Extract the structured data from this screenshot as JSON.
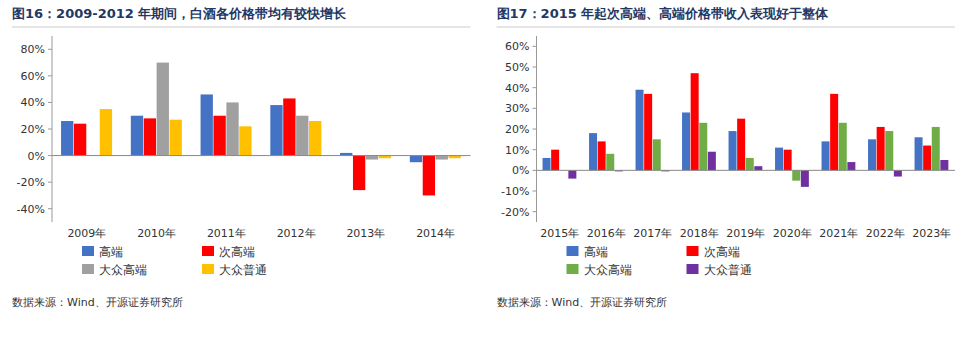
{
  "chart_data": [
    {
      "type": "bar",
      "title": "图16：2009-2012 年期间，白酒各价格带均有较快增长",
      "categories": [
        "2009年",
        "2010年",
        "2011年",
        "2012年",
        "2013年",
        "2014年"
      ],
      "series": [
        {
          "name": "高端",
          "color": "#4472C4",
          "values": [
            0.26,
            0.3,
            0.46,
            0.38,
            0.02,
            -0.05
          ]
        },
        {
          "name": "次高端",
          "color": "#FF0000",
          "values": [
            0.24,
            0.28,
            0.3,
            0.43,
            -0.26,
            -0.3
          ]
        },
        {
          "name": "大众高端",
          "color": "#A0A0A0",
          "values": [
            null,
            0.7,
            0.4,
            0.3,
            -0.03,
            -0.03
          ]
        },
        {
          "name": "大众普通",
          "color": "#FFC000",
          "values": [
            0.35,
            0.27,
            0.22,
            0.26,
            -0.02,
            -0.02
          ]
        }
      ],
      "ylim": [
        -0.5,
        0.9
      ],
      "yticks": [
        {
          "value": -0.4,
          "label": "-40%"
        },
        {
          "value": -0.2,
          "label": "-20%"
        },
        {
          "value": 0.0,
          "label": "0%"
        },
        {
          "value": 0.2,
          "label": "20%"
        },
        {
          "value": 0.4,
          "label": "40%"
        },
        {
          "value": 0.6,
          "label": "60%"
        },
        {
          "value": 0.8,
          "label": "80%"
        }
      ],
      "annotations": [
        "数据来源：Wind、开源证券研究所"
      ],
      "grid": false,
      "legend": "bottom"
    },
    {
      "type": "bar",
      "title": "图17：2015 年起次高端、高端价格带收入表现好于整体",
      "categories": [
        "2015年",
        "2016年",
        "2017年",
        "2018年",
        "2019年",
        "2020年",
        "2021年",
        "2022年",
        "2023年"
      ],
      "series": [
        {
          "name": "高端",
          "color": "#4472C4",
          "values": [
            0.06,
            0.18,
            0.39,
            0.28,
            0.19,
            0.11,
            0.14,
            0.15,
            0.16
          ]
        },
        {
          "name": "次高端",
          "color": "#FF0000",
          "values": [
            0.1,
            0.14,
            0.37,
            0.47,
            0.25,
            0.1,
            0.37,
            0.21,
            0.12
          ]
        },
        {
          "name": "大众高端",
          "color": "#70AD47",
          "values": [
            null,
            0.08,
            0.15,
            0.23,
            0.06,
            -0.05,
            0.23,
            0.19,
            0.21
          ]
        },
        {
          "name": "大众普通",
          "color": "#7030A0",
          "values": [
            -0.04,
            -0.005,
            -0.005,
            0.09,
            0.02,
            -0.08,
            0.04,
            -0.03,
            0.05
          ]
        }
      ],
      "ylim": [
        -0.25,
        0.65
      ],
      "yticks": [
        {
          "value": -0.2,
          "label": "-20%"
        },
        {
          "value": -0.1,
          "label": "-10%"
        },
        {
          "value": 0.0,
          "label": "0%"
        },
        {
          "value": 0.1,
          "label": "10%"
        },
        {
          "value": 0.2,
          "label": "20%"
        },
        {
          "value": 0.3,
          "label": "30%"
        },
        {
          "value": 0.4,
          "label": "40%"
        },
        {
          "value": 0.5,
          "label": "50%"
        },
        {
          "value": 0.6,
          "label": "60%"
        }
      ],
      "annotations": [
        "数据来源：Wind、开源证券研究所"
      ],
      "grid": false,
      "legend": "bottom"
    }
  ]
}
